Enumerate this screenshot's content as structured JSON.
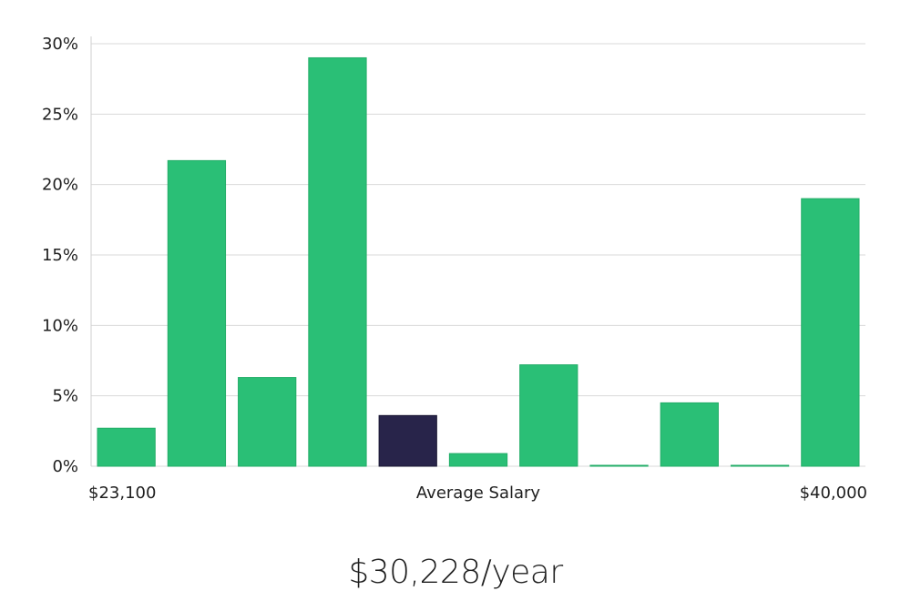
{
  "chart_data": {
    "type": "bar",
    "title": "",
    "xlabel": "Average Salary",
    "ylabel": "",
    "x_start_label": "$23,100",
    "x_end_label": "$40,000",
    "ylim": [
      0,
      30
    ],
    "yticks": [
      0,
      5,
      10,
      15,
      20,
      25,
      30
    ],
    "ytick_labels": [
      "0%",
      "5%",
      "10%",
      "15%",
      "20%",
      "25%",
      "30%"
    ],
    "grid": true,
    "values": [
      2.7,
      21.7,
      6.3,
      29.0,
      3.6,
      0.9,
      7.2,
      0.05,
      4.5,
      0.05,
      19.0
    ],
    "highlight_index": 4,
    "colors": {
      "bar": "#2abf76",
      "bar_edge": "#22ad67",
      "highlight": "#28244a",
      "highlight_edge": "#1a1733",
      "grid": "#d9d9d9",
      "axis": "#cfcfcf"
    }
  },
  "summary": {
    "average_salary": "$30,228/year"
  }
}
